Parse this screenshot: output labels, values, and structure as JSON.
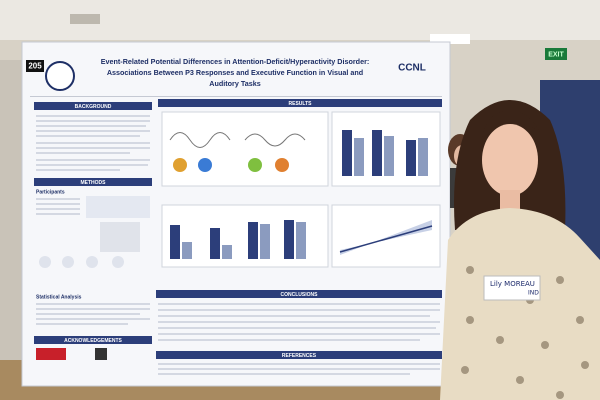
{
  "room": {
    "exit_sign": "EXIT"
  },
  "poster": {
    "number": "205",
    "title_lines": [
      "Event-Related Potential Differences in Attention-Deficit/Hyperactivity Disorder:",
      "Associations Between P3 Responses and Executive Function in Visual and",
      "Auditory Tasks"
    ],
    "logo": "CCNL",
    "sections": {
      "background": "BACKGROUND",
      "methods": "METHODS",
      "participants": "Participants",
      "statistical_analysis": "Statistical Analysis",
      "acknowledgements": "ACKNOWLEDGEMENTS",
      "results": "RESULTS",
      "conclusions": "CONCLUSIONS",
      "references": "REFERENCES"
    }
  },
  "name_tag": {
    "name": "Lily MOREAU",
    "note": "IND"
  }
}
